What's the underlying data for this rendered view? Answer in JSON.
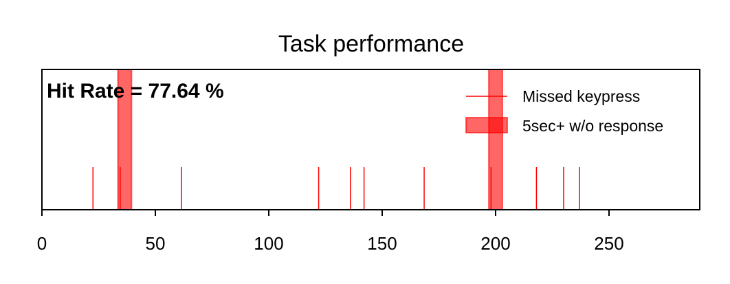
{
  "chart_data": {
    "type": "event-raster",
    "title": "Task performance",
    "xlabel": "",
    "ylabel": "",
    "xlim": [
      0,
      290
    ],
    "x_ticks": [
      0,
      50,
      100,
      150,
      200,
      250
    ],
    "x_tick_labels": [
      "0",
      "50",
      "100",
      "150",
      "200",
      "250"
    ],
    "y_ticks_visible": false,
    "annotation": "Hit Rate = 77.64 %",
    "legend_position": "upper right",
    "missed_keypress": {
      "label": "Missed keypress",
      "color": "#ff0000",
      "x": [
        22.5,
        34.5,
        61.5,
        122,
        136,
        142,
        168.5,
        198,
        218,
        230,
        237
      ]
    },
    "no_response_periods": {
      "label": "5sec+ w/o response",
      "color": "#ff0000",
      "opacity": 0.6,
      "spans": [
        [
          33.5,
          39.5
        ],
        [
          197,
          203
        ]
      ]
    }
  }
}
